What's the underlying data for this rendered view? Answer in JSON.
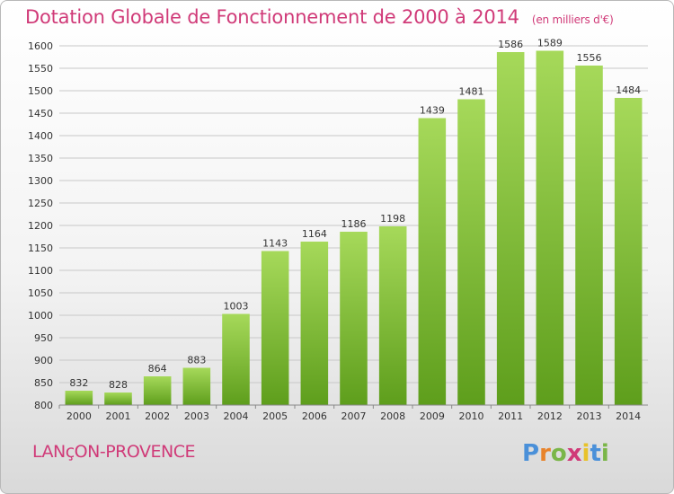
{
  "header": {
    "title": "Dotation Globale de Fonctionnement de 2000 à 2014",
    "subtitle": "(en milliers d'€)"
  },
  "footer": {
    "commune": "LANçON-PROVENCE",
    "logo_letters": [
      "P",
      "r",
      "o",
      "x",
      "i",
      "t",
      "i"
    ],
    "logo_colors": [
      "#4a90d9",
      "#e8832a",
      "#7ab648",
      "#d03a78",
      "#e8c22a",
      "#4a90d9",
      "#7ab648"
    ]
  },
  "colors": {
    "bar_light": "#a6d95a",
    "bar_dark": "#5e9e1c",
    "grid": "#c8c8c8"
  },
  "chart_data": {
    "type": "bar",
    "title": "Dotation Globale de Fonctionnement de 2000 à 2014",
    "subtitle": "(en milliers d'€)",
    "categories": [
      "2000",
      "2001",
      "2002",
      "2003",
      "2004",
      "2005",
      "2006",
      "2007",
      "2008",
      "2009",
      "2010",
      "2011",
      "2012",
      "2013",
      "2014"
    ],
    "values": [
      832,
      828,
      864,
      883,
      1003,
      1143,
      1164,
      1186,
      1198,
      1439,
      1481,
      1586,
      1589,
      1556,
      1484
    ],
    "yticks": [
      800,
      850,
      900,
      950,
      1000,
      1050,
      1100,
      1150,
      1200,
      1250,
      1300,
      1350,
      1400,
      1450,
      1500,
      1550,
      1600
    ],
    "ylim": [
      800,
      1600
    ],
    "xlabel": "",
    "ylabel": "",
    "grid": true
  }
}
